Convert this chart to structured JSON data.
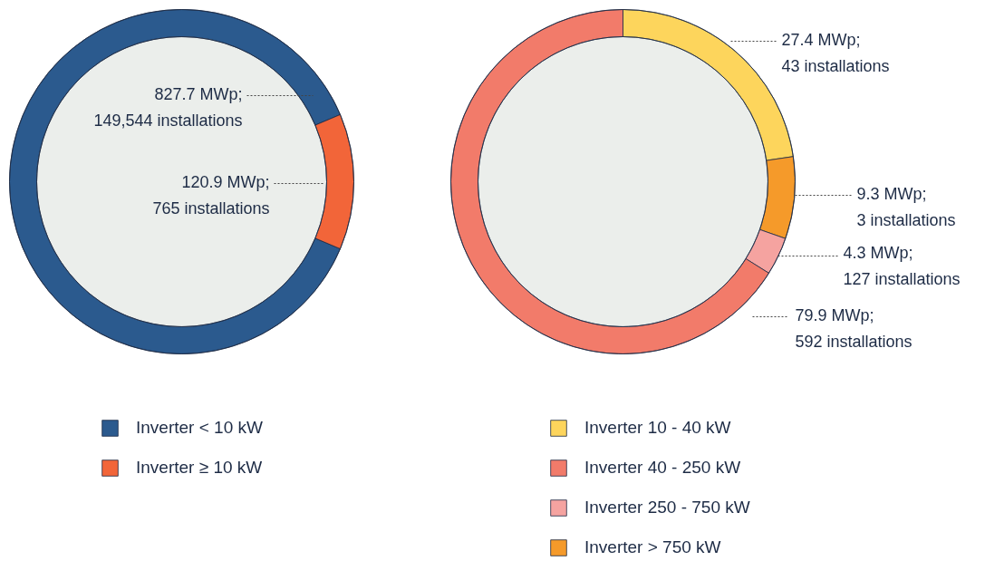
{
  "chart_data": [
    {
      "type": "donut",
      "categories": [
        "Inverter < 10 kW",
        "Inverter ≥ 10 kW"
      ],
      "values": [
        827.7,
        120.9
      ],
      "colors": [
        "#2b5a8e",
        "#f26539"
      ],
      "value_labels": [
        "827.7 MWp;\n149,544 installations",
        "120.9 MWp;\n765 installations"
      ],
      "legend": "bottom"
    },
    {
      "type": "donut",
      "categories": [
        "Inverter 10 - 40 kW",
        "Inverter 40 - 250 kW",
        "Inverter 250 - 750 kW",
        "Inverter > 750 kW"
      ],
      "values": [
        27.4,
        79.9,
        4.3,
        9.3
      ],
      "colors": [
        "#fdd55c",
        "#f27b6a",
        "#f5a3a0",
        "#f59a2a"
      ],
      "value_labels": [
        "27.4 MWp;\n43 installations",
        "79.9 MWp;\n592 installations",
        "4.3 MWp;\n127 installations",
        "9.3 MWp;\n3 installations"
      ],
      "legend": "bottom"
    }
  ]
}
